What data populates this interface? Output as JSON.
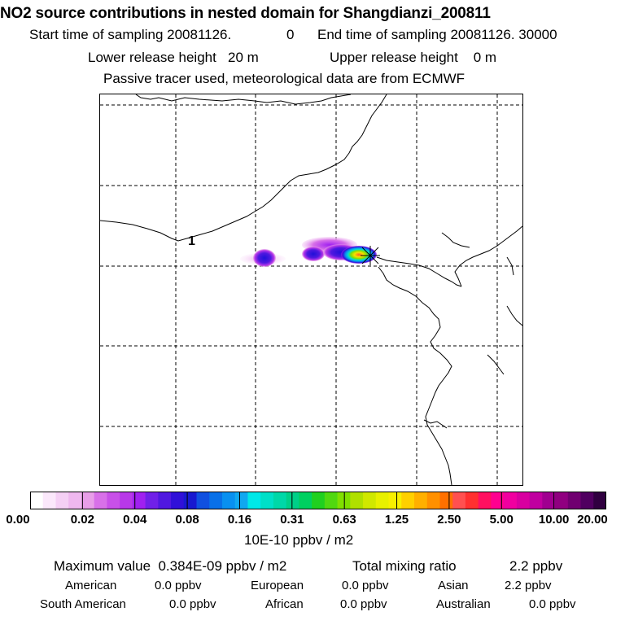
{
  "title": "NO2 source contributions in nested domain for Shangdianzi_200811",
  "start_label": "Start time of sampling 20081126.",
  "start_time": "0",
  "end_label": "End time of sampling 20081126. 30000",
  "lower_release": "Lower release height   20 m",
  "upper_release": "Upper release height    0 m",
  "tracer_note": "Passive tracer used, meteorological data are from ECMWF",
  "map": {
    "marker_label": "1"
  },
  "colorbar": {
    "ticks": [
      "0.00",
      "0.02",
      "0.04",
      "0.08",
      "0.16",
      "0.31",
      "0.63",
      "1.25",
      "2.50",
      "5.00",
      "10.00",
      "20.00"
    ],
    "unit": "10E-10 ppbv / m2",
    "colors": [
      "#ffffff",
      "#fbe8fb",
      "#f5d0f5",
      "#efb8ef",
      "#e89ee8",
      "#d870e8",
      "#c850e8",
      "#b838e8",
      "#a020f0",
      "#7020e8",
      "#5018e0",
      "#3010d8",
      "#1818d0",
      "#1050e0",
      "#0870e8",
      "#0890f0",
      "#10a8f0",
      "#00e8e8",
      "#00e0c8",
      "#00d8a8",
      "#00d088",
      "#00d060",
      "#20d020",
      "#50d810",
      "#80e000",
      "#b0e000",
      "#d0e800",
      "#e8f000",
      "#f8f000",
      "#ffd000",
      "#ffb000",
      "#ff9000",
      "#ff7000",
      "#ff5050",
      "#ff3030",
      "#ff1060",
      "#ff0090",
      "#f000a0",
      "#d800a0",
      "#c000a0",
      "#a00090",
      "#900080",
      "#700070",
      "#500060",
      "#300040"
    ]
  },
  "summary": {
    "max_label": "Maximum value  0.384E-09 ppbv / m2",
    "total_label": "Total mixing ratio",
    "total_value": "2.2 ppbv"
  },
  "regions": [
    {
      "name": "American",
      "value": "0.0 ppbv"
    },
    {
      "name": "European",
      "value": "0.0 ppbv"
    },
    {
      "name": "Asian",
      "value": "2.2 ppbv"
    },
    {
      "name": "South American",
      "value": "0.0 ppbv"
    },
    {
      "name": "African",
      "value": "0.0 ppbv"
    },
    {
      "name": "Australian",
      "value": "0.0 ppbv"
    }
  ]
}
